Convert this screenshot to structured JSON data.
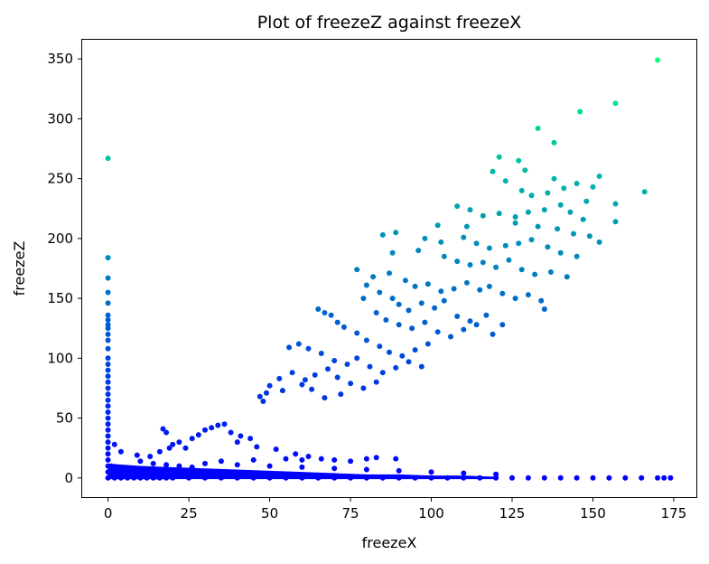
{
  "chart_data": {
    "type": "scatter",
    "title": "Plot of freezeZ against freezeX",
    "xlabel": "freezeX",
    "ylabel": "freezeZ",
    "xlim": [
      -8,
      182
    ],
    "ylim": [
      -16,
      366
    ],
    "x_ticks": [
      0,
      25,
      50,
      75,
      100,
      125,
      150,
      175
    ],
    "y_ticks": [
      0,
      50,
      100,
      150,
      200,
      250,
      300,
      350
    ],
    "colormap": "winter",
    "color_low": "#0000ff",
    "color_high": "#00ff80",
    "color_value_range": [
      0,
      350
    ],
    "grid": false,
    "points": [
      [
        170,
        349
      ],
      [
        157,
        313
      ],
      [
        146,
        306
      ],
      [
        133,
        292
      ],
      [
        138,
        280
      ],
      [
        0,
        267
      ],
      [
        121,
        268
      ],
      [
        127,
        265
      ],
      [
        129,
        257
      ],
      [
        119,
        256
      ],
      [
        138,
        250
      ],
      [
        152,
        252
      ],
      [
        123,
        248
      ],
      [
        128,
        240
      ],
      [
        141,
        242
      ],
      [
        145,
        246
      ],
      [
        150,
        243
      ],
      [
        166,
        239
      ],
      [
        131,
        236
      ],
      [
        136,
        238
      ],
      [
        140,
        228
      ],
      [
        148,
        231
      ],
      [
        157,
        229
      ],
      [
        108,
        227
      ],
      [
        112,
        224
      ],
      [
        116,
        219
      ],
      [
        121,
        221
      ],
      [
        130,
        222
      ],
      [
        135,
        224
      ],
      [
        143,
        222
      ],
      [
        147,
        216
      ],
      [
        157,
        214
      ],
      [
        126,
        218
      ],
      [
        89,
        205
      ],
      [
        102,
        211
      ],
      [
        111,
        210
      ],
      [
        126,
        213
      ],
      [
        133,
        210
      ],
      [
        139,
        208
      ],
      [
        144,
        204
      ],
      [
        149,
        202
      ],
      [
        152,
        197
      ],
      [
        85,
        203
      ],
      [
        98,
        200
      ],
      [
        103,
        197
      ],
      [
        110,
        201
      ],
      [
        114,
        196
      ],
      [
        118,
        192
      ],
      [
        123,
        194
      ],
      [
        127,
        196
      ],
      [
        131,
        199
      ],
      [
        136,
        193
      ],
      [
        140,
        188
      ],
      [
        145,
        185
      ],
      [
        0,
        184
      ],
      [
        88,
        188
      ],
      [
        96,
        190
      ],
      [
        104,
        185
      ],
      [
        108,
        181
      ],
      [
        112,
        178
      ],
      [
        116,
        180
      ],
      [
        120,
        176
      ],
      [
        124,
        182
      ],
      [
        128,
        174
      ],
      [
        132,
        170
      ],
      [
        137,
        172
      ],
      [
        142,
        168
      ],
      [
        0,
        167
      ],
      [
        77,
        174
      ],
      [
        82,
        168
      ],
      [
        87,
        171
      ],
      [
        92,
        165
      ],
      [
        95,
        160
      ],
      [
        99,
        162
      ],
      [
        103,
        156
      ],
      [
        107,
        158
      ],
      [
        111,
        163
      ],
      [
        115,
        157
      ],
      [
        118,
        160
      ],
      [
        122,
        154
      ],
      [
        126,
        150
      ],
      [
        130,
        153
      ],
      [
        134,
        148
      ],
      [
        135,
        141
      ],
      [
        0,
        155
      ],
      [
        0,
        146
      ],
      [
        80,
        161
      ],
      [
        84,
        155
      ],
      [
        88,
        150
      ],
      [
        90,
        145
      ],
      [
        93,
        140
      ],
      [
        97,
        146
      ],
      [
        101,
        142
      ],
      [
        104,
        148
      ],
      [
        108,
        135
      ],
      [
        112,
        131
      ],
      [
        117,
        136
      ],
      [
        122,
        128
      ],
      [
        79,
        150
      ],
      [
        83,
        138
      ],
      [
        86,
        132
      ],
      [
        90,
        128
      ],
      [
        94,
        125
      ],
      [
        98,
        130
      ],
      [
        102,
        122
      ],
      [
        106,
        118
      ],
      [
        110,
        124
      ],
      [
        114,
        128
      ],
      [
        119,
        120
      ],
      [
        0,
        136
      ],
      [
        0,
        128
      ],
      [
        65,
        141
      ],
      [
        67,
        138
      ],
      [
        69,
        136
      ],
      [
        71,
        130
      ],
      [
        73,
        126
      ],
      [
        77,
        121
      ],
      [
        80,
        115
      ],
      [
        84,
        110
      ],
      [
        87,
        105
      ],
      [
        91,
        102
      ],
      [
        95,
        107
      ],
      [
        99,
        112
      ],
      [
        56,
        109
      ],
      [
        59,
        112
      ],
      [
        62,
        108
      ],
      [
        66,
        104
      ],
      [
        70,
        98
      ],
      [
        74,
        95
      ],
      [
        77,
        100
      ],
      [
        81,
        93
      ],
      [
        85,
        88
      ],
      [
        89,
        92
      ],
      [
        93,
        97
      ],
      [
        97,
        93
      ],
      [
        0,
        115
      ],
      [
        0,
        108
      ],
      [
        0,
        100
      ],
      [
        0,
        95
      ],
      [
        0,
        90
      ],
      [
        0,
        85
      ],
      [
        0,
        80
      ],
      [
        0,
        75
      ],
      [
        0,
        70
      ],
      [
        0,
        65
      ],
      [
        0,
        60
      ],
      [
        0,
        55
      ],
      [
        0,
        50
      ],
      [
        0,
        45
      ],
      [
        0,
        40
      ],
      [
        0,
        35
      ],
      [
        0,
        30
      ],
      [
        0,
        25
      ],
      [
        53,
        83
      ],
      [
        57,
        88
      ],
      [
        61,
        82
      ],
      [
        64,
        86
      ],
      [
        68,
        91
      ],
      [
        71,
        84
      ],
      [
        75,
        79
      ],
      [
        79,
        75
      ],
      [
        83,
        80
      ],
      [
        50,
        77
      ],
      [
        54,
        73
      ],
      [
        60,
        78
      ],
      [
        63,
        74
      ],
      [
        67,
        67
      ],
      [
        72,
        70
      ],
      [
        47,
        68
      ],
      [
        48,
        64
      ],
      [
        49,
        71
      ],
      [
        17,
        41
      ],
      [
        18,
        38
      ],
      [
        22,
        30
      ],
      [
        26,
        33
      ],
      [
        28,
        36
      ],
      [
        30,
        40
      ],
      [
        32,
        42
      ],
      [
        34,
        44
      ],
      [
        36,
        45
      ],
      [
        38,
        38
      ],
      [
        41,
        35
      ],
      [
        44,
        33
      ],
      [
        20,
        28
      ],
      [
        24,
        25
      ],
      [
        2,
        28
      ],
      [
        4,
        22
      ],
      [
        9,
        19
      ],
      [
        13,
        18
      ],
      [
        16,
        22
      ],
      [
        19,
        25
      ],
      [
        40,
        30
      ],
      [
        46,
        26
      ],
      [
        52,
        24
      ],
      [
        58,
        20
      ],
      [
        62,
        18
      ],
      [
        66,
        16
      ],
      [
        70,
        15
      ],
      [
        75,
        14
      ],
      [
        80,
        16
      ],
      [
        83,
        17
      ],
      [
        89,
        16
      ],
      [
        55,
        16
      ],
      [
        60,
        15
      ],
      [
        45,
        15
      ],
      [
        35,
        14
      ],
      [
        30,
        12
      ],
      [
        10,
        14
      ],
      [
        14,
        12
      ],
      [
        18,
        11
      ],
      [
        22,
        10
      ],
      [
        26,
        9
      ],
      [
        40,
        11
      ],
      [
        50,
        10
      ],
      [
        60,
        9
      ],
      [
        70,
        8
      ],
      [
        80,
        7
      ],
      [
        90,
        6
      ],
      [
        100,
        5
      ],
      [
        110,
        4
      ],
      [
        120,
        3
      ],
      [
        1,
        10
      ],
      [
        3,
        8
      ],
      [
        5,
        6
      ],
      [
        7,
        5
      ],
      [
        9,
        4
      ],
      [
        11,
        3
      ],
      [
        13,
        2
      ],
      [
        15,
        1
      ],
      [
        20,
        0
      ],
      [
        25,
        0
      ],
      [
        30,
        0
      ],
      [
        35,
        0
      ],
      [
        40,
        0
      ],
      [
        45,
        0
      ],
      [
        50,
        0
      ],
      [
        55,
        0
      ],
      [
        60,
        0
      ],
      [
        65,
        0
      ],
      [
        70,
        0
      ],
      [
        75,
        0
      ],
      [
        80,
        0
      ],
      [
        85,
        0
      ],
      [
        90,
        0
      ],
      [
        95,
        0
      ],
      [
        100,
        0
      ],
      [
        105,
        0
      ],
      [
        110,
        0
      ],
      [
        115,
        0
      ],
      [
        120,
        0
      ],
      [
        125,
        0
      ],
      [
        130,
        0
      ],
      [
        135,
        0
      ],
      [
        140,
        0
      ],
      [
        145,
        0
      ],
      [
        150,
        0
      ],
      [
        155,
        0
      ],
      [
        160,
        0
      ],
      [
        165,
        0
      ],
      [
        170,
        0
      ],
      [
        172,
        0
      ],
      [
        174,
        0
      ],
      [
        0,
        0
      ],
      [
        2,
        0
      ],
      [
        4,
        0
      ],
      [
        6,
        0
      ],
      [
        8,
        0
      ],
      [
        10,
        0
      ],
      [
        12,
        0
      ],
      [
        14,
        0
      ],
      [
        16,
        0
      ],
      [
        18,
        0
      ],
      [
        0,
        20
      ],
      [
        0,
        15
      ],
      [
        0,
        10
      ],
      [
        0,
        5
      ],
      [
        0,
        120
      ],
      [
        0,
        125
      ],
      [
        0,
        132
      ]
    ]
  }
}
